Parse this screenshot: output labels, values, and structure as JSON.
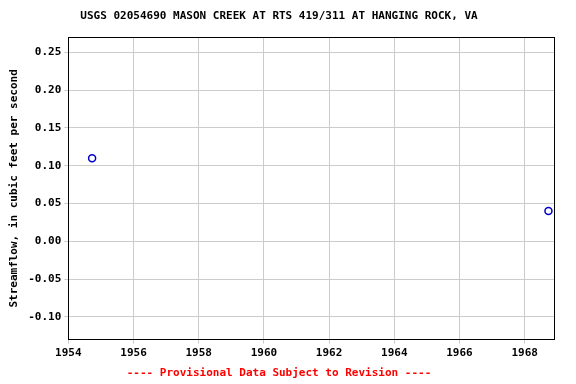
{
  "chart_data": {
    "type": "scatter",
    "title": "USGS 02054690 MASON CREEK AT RTS 419/311 AT HANGING ROCK, VA",
    "footnote": "---- Provisional Data Subject to Revision ----",
    "y_label": "Streamflow, in cubic feet per second",
    "x": [
      1954.73,
      1968.73
    ],
    "values": [
      0.11,
      0.04
    ],
    "color": "#0000cc",
    "marker": "circle",
    "xlim": [
      1954,
      1968.9
    ],
    "xticks": [
      1954,
      1956,
      1958,
      1960,
      1962,
      1964,
      1966,
      1968
    ],
    "ylim": [
      -0.13,
      0.27
    ],
    "yticks": [
      {
        "value": -0.1,
        "label": "-0.10"
      },
      -0.05,
      {
        "value": 0,
        "label": "0.00"
      },
      0.05,
      {
        "value": 0.1,
        "label": "0.10"
      },
      0.15,
      {
        "value": 0.2,
        "label": "0.20"
      },
      0.25
    ],
    "grid": true
  }
}
